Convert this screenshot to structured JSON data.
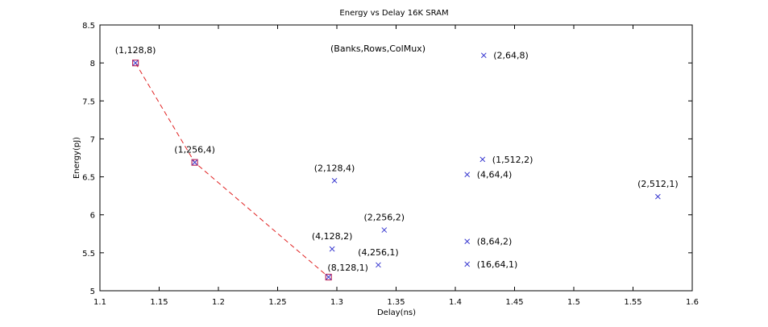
{
  "chart_data": {
    "type": "scatter",
    "title": "Energy vs Delay 16K SRAM",
    "xlabel": "Delay(ns)",
    "ylabel": "Energy(pJ)",
    "annotation": "(Banks,Rows,ColMux)",
    "xlim": [
      1.1,
      1.6
    ],
    "ylim": [
      5,
      8.5
    ],
    "xticks": [
      "1.1",
      "1.15",
      "1.2",
      "1.25",
      "1.3",
      "1.35",
      "1.4",
      "1.45",
      "1.5",
      "1.55",
      "1.6"
    ],
    "yticks": [
      "5",
      "5.5",
      "6",
      "6.5",
      "7",
      "7.5",
      "8",
      "8.5"
    ],
    "grid": false,
    "points": [
      {
        "label": "(1,128,8)",
        "x": 1.13,
        "y": 8.0,
        "pareto": true
      },
      {
        "label": "(1,256,4)",
        "x": 1.18,
        "y": 6.69,
        "pareto": true
      },
      {
        "label": "(8,128,1)",
        "x": 1.293,
        "y": 5.18,
        "pareto": true
      },
      {
        "label": "(2,128,4)",
        "x": 1.298,
        "y": 6.45,
        "pareto": false
      },
      {
        "label": "(4,128,2)",
        "x": 1.296,
        "y": 5.55,
        "pareto": false
      },
      {
        "label": "(2,256,2)",
        "x": 1.34,
        "y": 5.8,
        "pareto": false
      },
      {
        "label": "(4,256,1)",
        "x": 1.335,
        "y": 5.34,
        "pareto": false
      },
      {
        "label": "(2,64,8)",
        "x": 1.424,
        "y": 8.1,
        "pareto": false
      },
      {
        "label": "(1,512,2)",
        "x": 1.423,
        "y": 6.73,
        "pareto": false
      },
      {
        "label": "(4,64,4)",
        "x": 1.41,
        "y": 6.53,
        "pareto": false
      },
      {
        "label": "(8,64,2)",
        "x": 1.41,
        "y": 5.65,
        "pareto": false
      },
      {
        "label": "(16,64,1)",
        "x": 1.41,
        "y": 5.35,
        "pareto": false
      },
      {
        "label": "(2,512,1)",
        "x": 1.571,
        "y": 6.24,
        "pareto": false
      }
    ],
    "colors": {
      "point": "#3a3ad0",
      "pareto_line": "#e02020",
      "pareto_marker": "#c03060"
    }
  }
}
